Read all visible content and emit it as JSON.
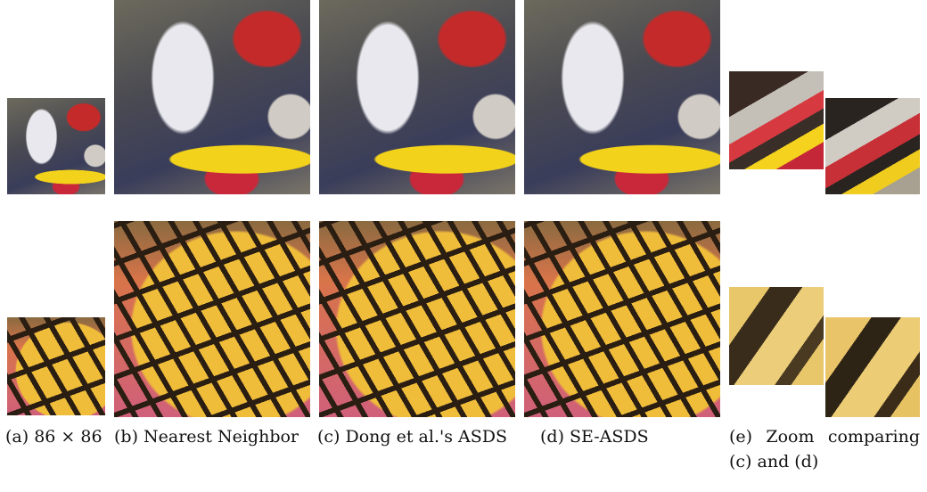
{
  "captions": [
    "(a) 86 × 86",
    "(b) Nearest Neighbor",
    "(c) Dong et al.'s ASDS",
    "(d) SE-ASDS",
    "(e) Zoom comparing (c) and (d)"
  ]
}
